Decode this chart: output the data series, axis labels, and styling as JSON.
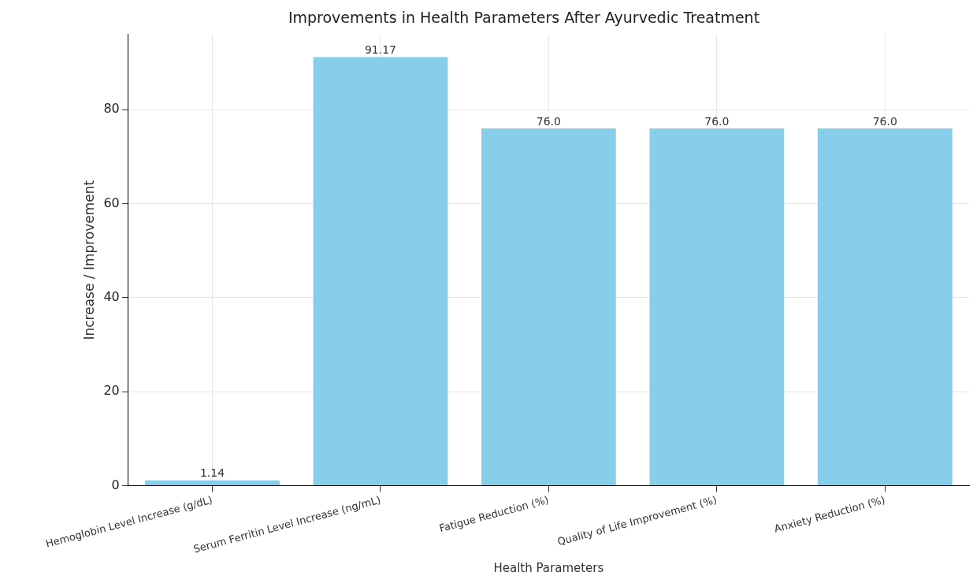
{
  "chart_data": {
    "type": "bar",
    "title": "Improvements in Health Parameters After Ayurvedic Treatment",
    "xlabel": "Health Parameters",
    "ylabel": "Increase / Improvement",
    "categories": [
      "Hemoglobin Level Increase (g/dL)",
      "Serum Ferritin Level Increase (ng/mL)",
      "Fatigue Reduction (%)",
      "Quality of Life Improvement (%)",
      "Anxiety Reduction (%)"
    ],
    "values": [
      1.14,
      91.17,
      76.0,
      76.0,
      76.0
    ],
    "value_labels": [
      "1.14",
      "91.17",
      "76.0",
      "76.0",
      "76.0"
    ],
    "color": "#87ceeb",
    "ylim": [
      0,
      96
    ],
    "yticks": [
      0,
      20,
      40,
      60,
      80
    ],
    "grid": true
  }
}
